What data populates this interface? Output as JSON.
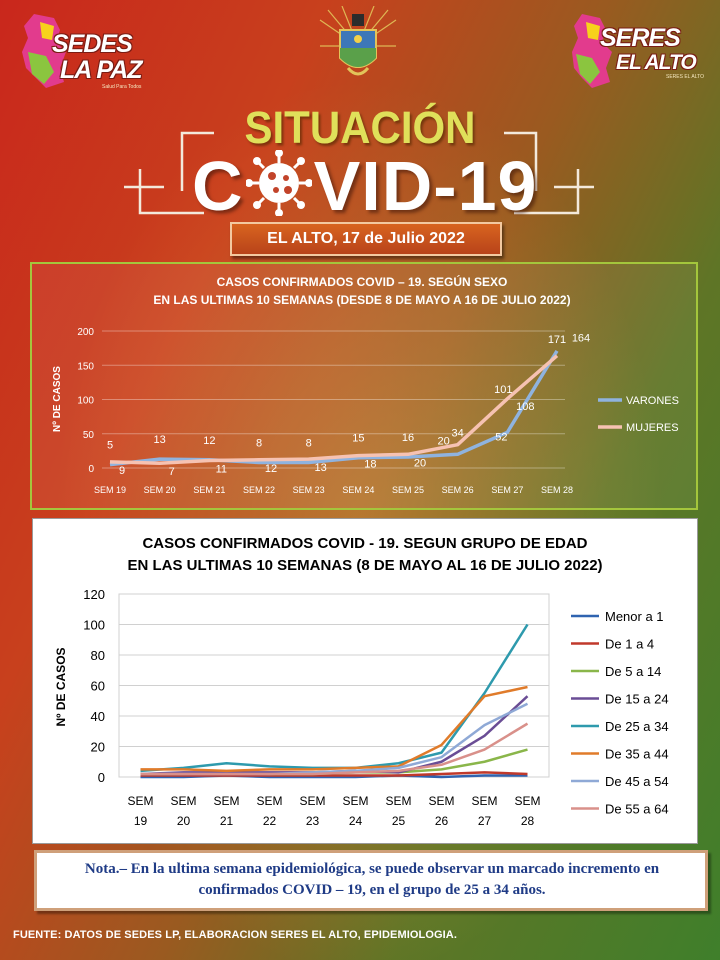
{
  "header": {
    "left_logo": {
      "line1": "SEDES",
      "line2": "LA PAZ",
      "tagline": "Salud Para Todos",
      "colors": [
        "#e23b8d",
        "#f7d21b",
        "#29a4d8",
        "#8bc53f"
      ]
    },
    "right_logo": {
      "line1": "SERES",
      "line2": "EL ALTO",
      "tagline": "SERES EL ALTO",
      "colors": [
        "#e23b8d",
        "#f7d21b",
        "#29a4d8",
        "#8bc53f"
      ]
    },
    "emblem_icon": "coat-of-arms-icon"
  },
  "title": {
    "kicker": "SITUACIÓN",
    "main_pre": "C",
    "main_post": "VID-19",
    "virus_icon": "virus-icon",
    "date": "EL ALTO, 17 de Julio 2022"
  },
  "colors": {
    "background_red": "#c9271c",
    "background_green": "#3f7f2b",
    "kicker": "#e0e05a",
    "note_text": "#1f3b86"
  },
  "chart_data": [
    {
      "type": "line",
      "title_line1": "CASOS CONFIRMADOS COVID – 19. SEGÚN SEXO",
      "title_line2": "EN LAS ULTIMAS 10 SEMANAS (DESDE 8 DE MAYO A 16 DE JULIO 2022)",
      "ylabel": "Nº DE CASOS",
      "xlabel": "",
      "ylim": [
        0,
        200
      ],
      "yticks": [
        "0",
        "50",
        "100",
        "150",
        "200"
      ],
      "categories": [
        "SEM 19",
        "SEM 20",
        "SEM 21",
        "SEM 22",
        "SEM 23",
        "SEM 24",
        "SEM 25",
        "SEM 26",
        "SEM 27",
        "SEM 28"
      ],
      "grid": true,
      "legend": "right",
      "series": [
        {
          "name": "VARONES",
          "color": "#8fb3df",
          "values": [
            5,
            13,
            12,
            8,
            8,
            15,
            16,
            20,
            52,
            171
          ],
          "labels": [
            "5",
            "13",
            "12",
            "8",
            "8",
            "15",
            "16",
            "20",
            "52",
            "171"
          ]
        },
        {
          "name": "MUJERES",
          "color": "#f6c2b2",
          "values": [
            9,
            7,
            11,
            12,
            13,
            18,
            20,
            34,
            101,
            164
          ],
          "labels": [
            "9",
            "7",
            "11",
            "12",
            "13",
            "18",
            "20",
            "34",
            "101",
            "164"
          ]
        }
      ],
      "label_note": "data labels as printed",
      "printed_labels": [
        {
          "text": "5"
        },
        {
          "text": "9"
        },
        {
          "text": "13"
        },
        {
          "text": "7"
        },
        {
          "text": "12"
        },
        {
          "text": "11"
        },
        {
          "text": "8"
        },
        {
          "text": "12"
        },
        {
          "text": "8"
        },
        {
          "text": "13"
        },
        {
          "text": "15"
        },
        {
          "text": "18"
        },
        {
          "text": "16"
        },
        {
          "text": "20"
        },
        {
          "text": "34"
        },
        {
          "text": "52"
        },
        {
          "text": "101"
        },
        {
          "text": "108"
        },
        {
          "text": "171"
        },
        {
          "text": "164"
        }
      ]
    },
    {
      "type": "line",
      "title_line1": "CASOS CONFIRMADOS COVID - 19. SEGUN GRUPO DE EDAD",
      "title_line2": "EN LAS ULTIMAS 10 SEMANAS (8 DE MAYO AL 16 DE JULIO 2022)",
      "ylabel": "Nº DE CASOS",
      "xlabel": "",
      "ylim": [
        0,
        120
      ],
      "yticks": [
        "0",
        "20",
        "40",
        "60",
        "80",
        "100",
        "120"
      ],
      "categories_top": [
        "SEM",
        "SEM",
        "SEM",
        "SEM",
        "SEM",
        "SEM",
        "SEM",
        "SEM",
        "SEM",
        "SEM"
      ],
      "categories_bottom": [
        "19",
        "20",
        "21",
        "22",
        "23",
        "24",
        "25",
        "26",
        "27",
        "28"
      ],
      "grid": true,
      "legend": "right",
      "series": [
        {
          "name": "Menor a 1",
          "color": "#2f63b0",
          "values": [
            0,
            0,
            1,
            0,
            0,
            0,
            1,
            0,
            1,
            1
          ]
        },
        {
          "name": "De 1 a 4",
          "color": "#c0392b",
          "values": [
            1,
            1,
            1,
            1,
            1,
            1,
            1,
            2,
            3,
            2
          ]
        },
        {
          "name": "De 5 a 14",
          "color": "#8ab64a",
          "values": [
            2,
            2,
            3,
            2,
            2,
            3,
            3,
            5,
            10,
            18
          ]
        },
        {
          "name": "De 15 a 24",
          "color": "#6a4d95",
          "values": [
            2,
            3,
            3,
            3,
            3,
            4,
            3,
            10,
            27,
            53
          ]
        },
        {
          "name": "De 25 a 34",
          "color": "#2e9aad",
          "values": [
            4,
            6,
            9,
            7,
            6,
            6,
            9,
            16,
            55,
            100
          ]
        },
        {
          "name": "De 35 a 44",
          "color": "#e07b2a",
          "values": [
            5,
            5,
            4,
            5,
            5,
            6,
            7,
            21,
            53,
            59
          ]
        },
        {
          "name": "De 45 a 54",
          "color": "#8fa9d6",
          "values": [
            2,
            2,
            2,
            2,
            3,
            4,
            6,
            13,
            34,
            48
          ]
        },
        {
          "name": "De 55 a 64",
          "color": "#d9908a",
          "values": [
            2,
            2,
            2,
            2,
            2,
            3,
            4,
            8,
            18,
            35
          ]
        }
      ]
    }
  ],
  "note": "Nota.– En la ultima semana epidemiológica, se puede observar un marcado incremento en confirmados COVID – 19, en el grupo de 25 a 34 años.",
  "source": "FUENTE: DATOS DE SEDES LP, ELABORACION SERES EL ALTO, EPIDEMIOLOGIA."
}
